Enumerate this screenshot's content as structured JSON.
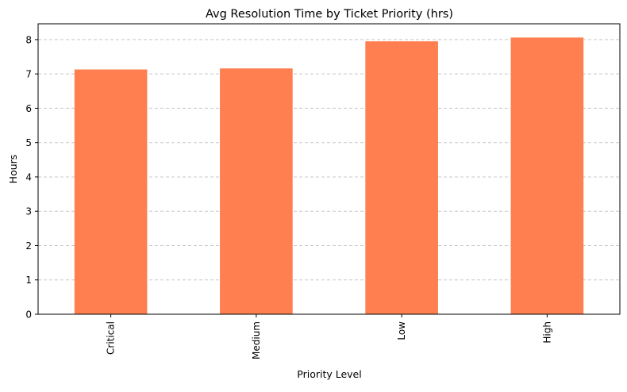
{
  "chart_data": {
    "type": "bar",
    "title": "Avg Resolution Time by Ticket Priority (hrs)",
    "xlabel": "Priority Level",
    "ylabel": "Hours",
    "categories": [
      "Critical",
      "Medium",
      "Low",
      "High"
    ],
    "values": [
      7.13,
      7.16,
      7.95,
      8.06
    ],
    "ylim": [
      0,
      8.46
    ],
    "yticks": [
      0,
      1,
      2,
      3,
      4,
      5,
      6,
      7,
      8
    ],
    "grid": {
      "axis": "y",
      "style": "dashed"
    },
    "bar_color": "#ff7f50",
    "grid_color": "#c8c8c8"
  }
}
